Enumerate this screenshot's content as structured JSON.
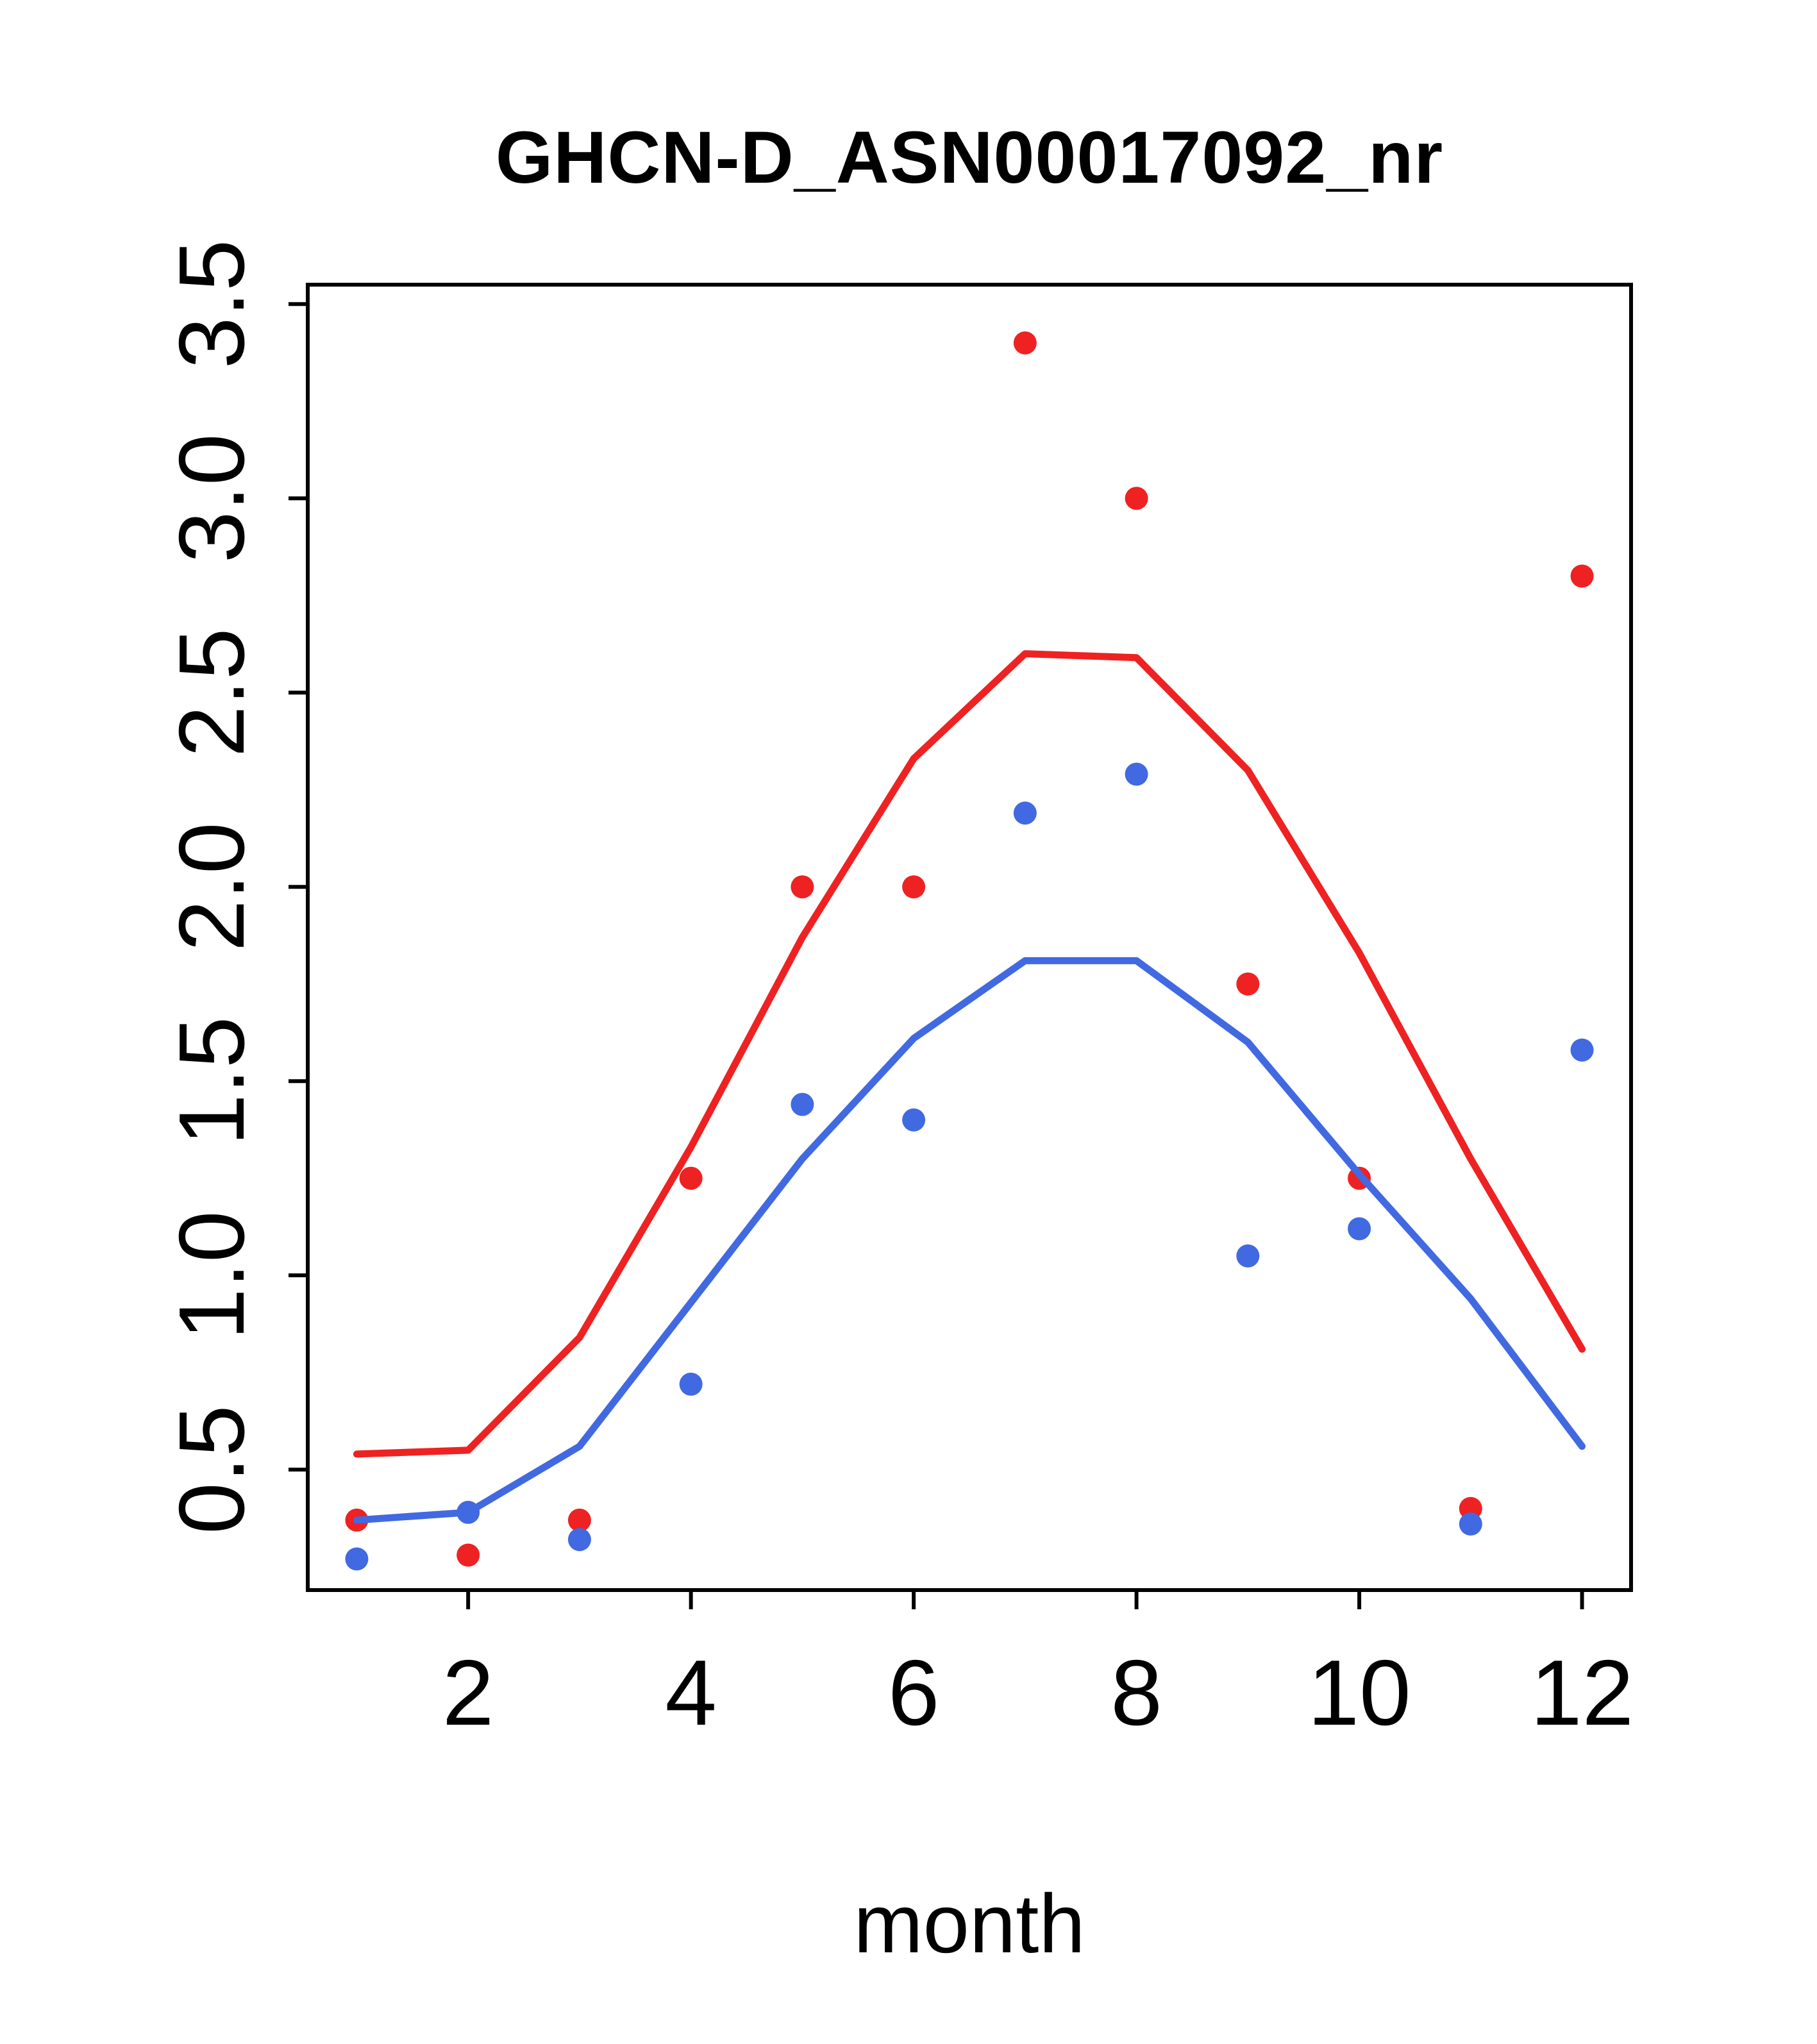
{
  "figure": {
    "title": "GHCN-D_ASN00017092_nr",
    "xlabel": "month"
  },
  "chart_data": {
    "type": "scatter",
    "title": "GHCN-D_ASN00017092_nr",
    "xlabel": "month",
    "ylabel": "",
    "x": [
      1,
      2,
      3,
      4,
      5,
      6,
      7,
      8,
      9,
      10,
      11,
      12
    ],
    "xlim": [
      0.56,
      12.44
    ],
    "ylim": [
      0.19,
      3.55
    ],
    "x_ticks": [
      2,
      4,
      6,
      8,
      10,
      12
    ],
    "x_tick_labels": [
      "2",
      "4",
      "6",
      "8",
      "10",
      "12"
    ],
    "y_ticks": [
      0.5,
      1.0,
      1.5,
      2.0,
      2.5,
      3.0,
      3.5
    ],
    "y_tick_labels": [
      "0.5",
      "1.0",
      "1.5",
      "2.0",
      "2.5",
      "3.0",
      "3.5"
    ],
    "grid": false,
    "legend": "none",
    "colors": {
      "red": "#EE2222",
      "blue": "#4169E1",
      "axis": "#000000",
      "background": "#FFFFFF"
    },
    "series": [
      {
        "name": "red-points",
        "style": "points",
        "color": "red",
        "values": [
          0.37,
          0.28,
          0.37,
          1.25,
          2.0,
          2.0,
          3.4,
          3.0,
          1.75,
          1.25,
          0.4,
          2.8
        ]
      },
      {
        "name": "blue-points",
        "style": "points",
        "color": "blue",
        "values": [
          0.27,
          0.39,
          0.32,
          0.72,
          1.44,
          1.4,
          2.19,
          2.29,
          1.05,
          1.12,
          0.36,
          1.58
        ]
      },
      {
        "name": "red-line",
        "style": "line",
        "color": "red",
        "values": [
          0.54,
          0.55,
          0.84,
          1.33,
          1.87,
          2.33,
          2.6,
          2.59,
          2.3,
          1.83,
          1.3,
          0.81
        ]
      },
      {
        "name": "blue-line",
        "style": "line",
        "color": "blue",
        "values": [
          0.37,
          0.39,
          0.56,
          0.93,
          1.3,
          1.61,
          1.81,
          1.81,
          1.6,
          1.26,
          0.94,
          0.56
        ]
      }
    ]
  }
}
